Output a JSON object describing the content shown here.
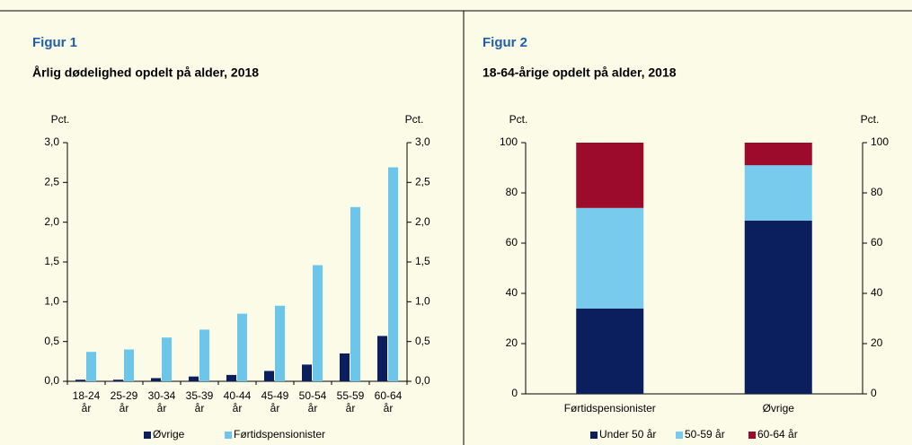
{
  "chart_data": [
    {
      "type": "bar",
      "label": "Figur 1",
      "title": "Årlig dødelighed opdelt på alder, 2018",
      "y_label": "Pct.",
      "y2_label": "Pct.",
      "categories": [
        "18-24 år",
        "25-29 år",
        "30-34 år",
        "35-39 år",
        "40-44 år",
        "45-49 år",
        "50-54 år",
        "55-59 år",
        "60-64 år"
      ],
      "series": [
        {
          "name": "Øvrige",
          "color": "#0b1f5e",
          "values": [
            0.02,
            0.02,
            0.04,
            0.06,
            0.08,
            0.13,
            0.21,
            0.35,
            0.57
          ]
        },
        {
          "name": "Førtidspensionister",
          "color": "#6cc6ea",
          "values": [
            0.37,
            0.4,
            0.55,
            0.65,
            0.85,
            0.95,
            1.46,
            2.19,
            2.69
          ]
        }
      ],
      "ylim": [
        0,
        3
      ],
      "yticks": [
        {
          "value": 0,
          "label": "0,0"
        },
        {
          "value": 0.5,
          "label": "0,5"
        },
        {
          "value": 1,
          "label": "1,0"
        },
        {
          "value": 1.5,
          "label": "1,5"
        },
        {
          "value": 2,
          "label": "2,0"
        },
        {
          "value": 2.5,
          "label": "2,5"
        },
        {
          "value": 3,
          "label": "3,0"
        }
      ],
      "y2lim": [
        0,
        3
      ],
      "y2ticks": [
        {
          "value": 0,
          "label": "0,0"
        },
        {
          "value": 0.5,
          "label": "0,5"
        },
        {
          "value": 1,
          "label": "1,0"
        },
        {
          "value": 1.5,
          "label": "1,5"
        },
        {
          "value": 2,
          "label": "2,0"
        },
        {
          "value": 2.5,
          "label": "2,5"
        },
        {
          "value": 3,
          "label": "3,0"
        }
      ],
      "legend": "bottom"
    },
    {
      "type": "stacked_bar",
      "label": "Figur 2",
      "title": "18-64-årige opdelt på alder, 2018",
      "y_label": "Pct.",
      "y2_label": "Pct.",
      "categories": [
        "Førtidspensionister",
        "Øvrige"
      ],
      "series": [
        {
          "name": "Under 50 år",
          "color": "#0b1f5e",
          "values": [
            34,
            69
          ]
        },
        {
          "name": "50-59 år",
          "color": "#78cbec",
          "values": [
            40,
            22
          ]
        },
        {
          "name": "60-64 år",
          "color": "#9c0a2c",
          "values": [
            26,
            9
          ]
        }
      ],
      "ylim": [
        0,
        100
      ],
      "yticks": [
        0,
        20,
        40,
        60,
        80,
        100
      ],
      "y2lim": [
        0,
        100
      ],
      "y2ticks": [
        0,
        20,
        40,
        60,
        80,
        100
      ],
      "legend": "bottom"
    }
  ]
}
